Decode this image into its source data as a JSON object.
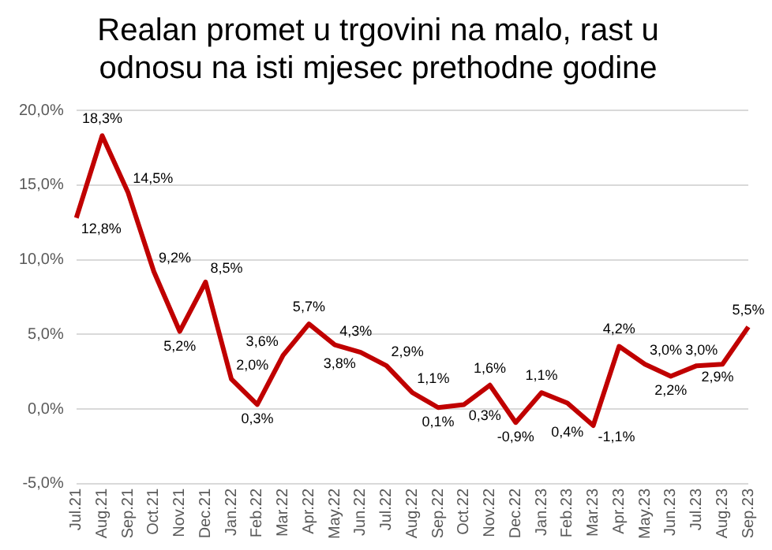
{
  "chart_data": {
    "type": "line",
    "title": [
      "Realan promet u trgovini na malo, rast u",
      "odnosu na isti mjesec prethodne godine"
    ],
    "categories": [
      "Jul.21",
      "Aug.21",
      "Sep.21",
      "Oct.21",
      "Nov.21",
      "Dec.21",
      "Jan.22",
      "Feb.22",
      "Mar.22",
      "Apr.22",
      "May.22",
      "Jun.22",
      "Jul.22",
      "Aug.22",
      "Sep.22",
      "Oct.22",
      "Nov.22",
      "Dec.22",
      "Jan.23",
      "Feb.23",
      "Mar.23",
      "Apr.23",
      "May.23",
      "Jun.23",
      "Jul.23",
      "Aug.23",
      "Sep.23"
    ],
    "series": [
      {
        "color": "#c00000",
        "values": [
          12.8,
          18.3,
          14.5,
          9.2,
          5.2,
          8.5,
          2.0,
          0.3,
          3.6,
          5.7,
          4.3,
          3.8,
          2.9,
          1.1,
          0.1,
          0.3,
          1.6,
          -0.9,
          1.1,
          0.4,
          -1.1,
          4.2,
          3.0,
          2.2,
          2.9,
          3.0,
          5.5
        ],
        "value_labels": [
          "12,8%",
          "18,3%",
          "14,5%",
          "9,2%",
          "5,2%",
          "8,5%",
          "2,0%",
          "0,3%",
          "3,6%",
          "5,7%",
          "4,3%",
          "3,8%",
          "2,9%",
          "1,1%",
          "0,1%",
          "0,3%",
          "1,6%",
          "-0,9%",
          "1,1%",
          "0,4%",
          "-1,1%",
          "4,2%",
          "3,0%",
          "2,2%",
          "2,9%",
          "3,0%",
          "5,5%"
        ]
      }
    ],
    "ylim": [
      -5,
      20
    ],
    "yticks": [
      {
        "value": -5,
        "label": "-5,0%"
      },
      {
        "value": 0,
        "label": "0,0%"
      },
      {
        "value": 5,
        "label": "5,0%"
      },
      {
        "value": 10,
        "label": "10,0%"
      },
      {
        "value": 15,
        "label": "15,0%"
      },
      {
        "value": 20,
        "label": "20,0%"
      }
    ],
    "grid": "y",
    "legend": false,
    "marker": "none",
    "line_style": "solid"
  }
}
